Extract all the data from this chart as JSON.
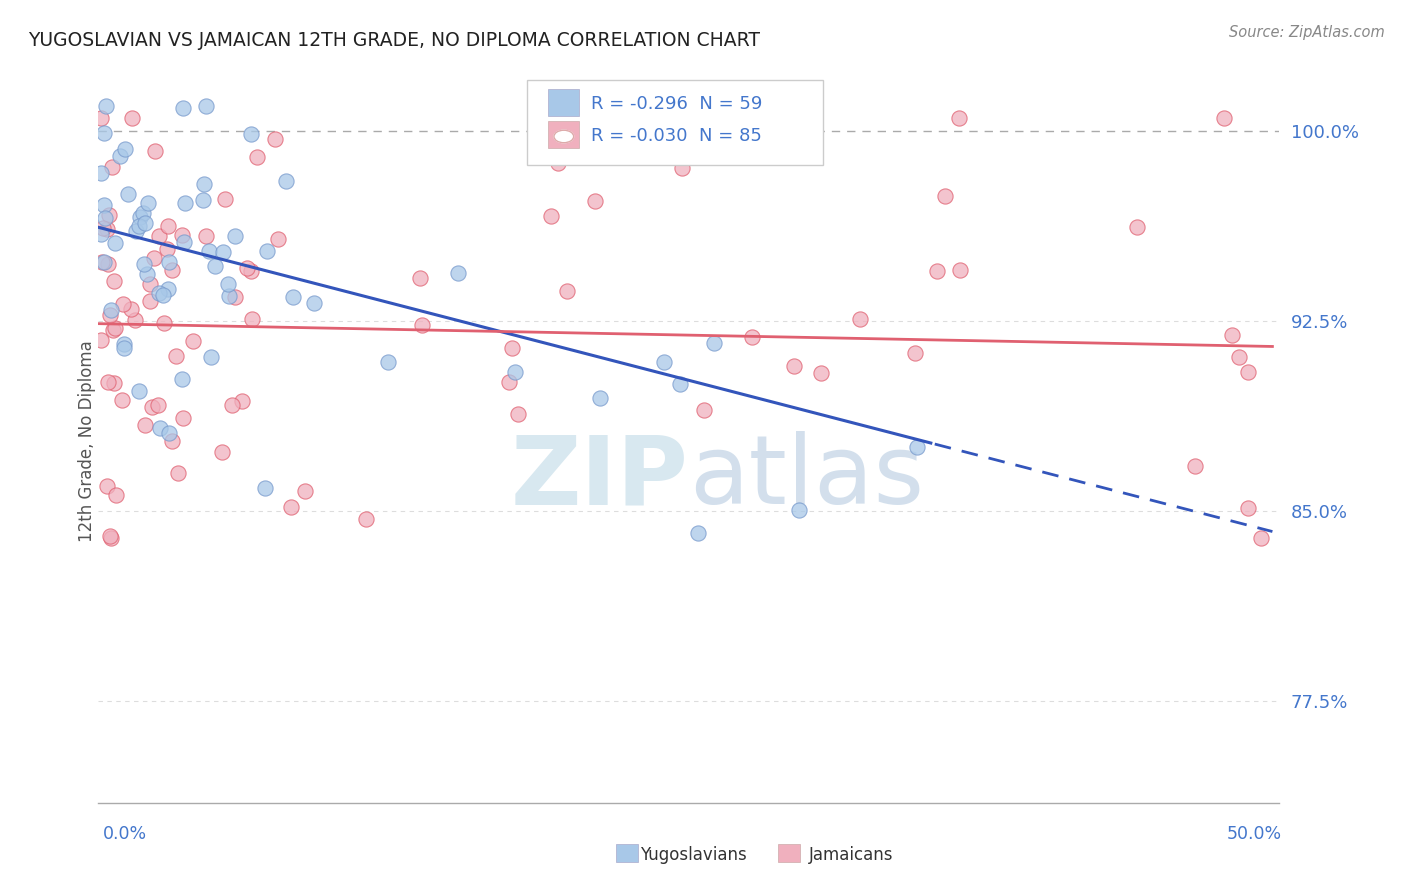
{
  "title": "YUGOSLAVIAN VS JAMAICAN 12TH GRADE, NO DIPLOMA CORRELATION CHART",
  "source_text": "Source: ZipAtlas.com",
  "ylabel": "12th Grade, No Diploma",
  "ylim": [
    0.735,
    1.02
  ],
  "xlim": [
    0.0,
    0.503
  ],
  "yticks": [
    0.775,
    0.85,
    0.925,
    1.0
  ],
  "ytick_labels": [
    "77.5%",
    "85.0%",
    "92.5%",
    "100.0%"
  ],
  "legend_R1": "-0.296",
  "legend_N1": "59",
  "legend_R2": "-0.030",
  "legend_N2": "85",
  "blue_color": "#a8c8e8",
  "pink_color": "#f0b0be",
  "blue_line_color": "#3355bb",
  "pink_line_color": "#e06070",
  "text_color": "#4477cc",
  "watermark_color": "#d8e8f0",
  "grid_color": "#dddddd",
  "blue_intercept": 0.962,
  "blue_slope": -0.24,
  "pink_intercept": 0.924,
  "pink_slope": -0.018
}
